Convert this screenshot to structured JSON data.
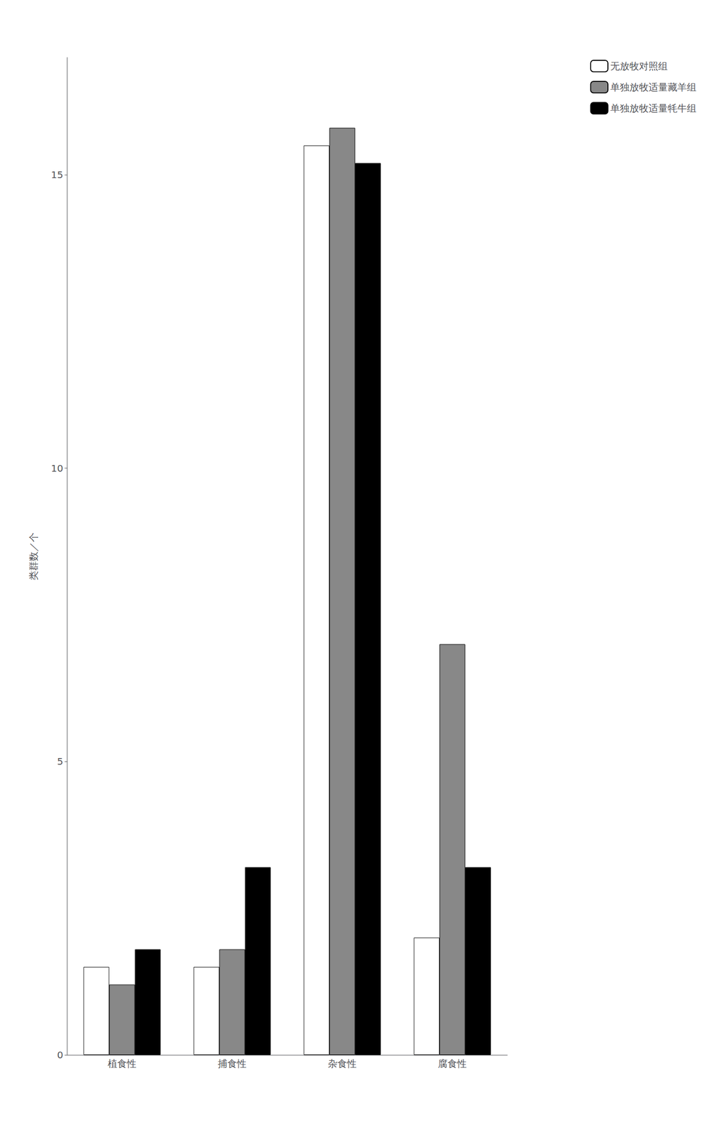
{
  "chart_data": {
    "type": "bar",
    "categories": [
      "植食性",
      "捕食性",
      "杂食性",
      "腐食性"
    ],
    "series": [
      {
        "name": "无放牧对照组",
        "color": "white",
        "values": [
          1.5,
          1.5,
          15.5,
          2.0
        ]
      },
      {
        "name": "单独放牧适量藏羊组",
        "color": "#888888",
        "values": [
          1.2,
          1.8,
          15.8,
          7.0
        ]
      },
      {
        "name": "单独放牧适量牦牛组",
        "color": "black",
        "values": [
          1.8,
          3.2,
          15.2,
          3.2
        ]
      }
    ],
    "ylabel": "类群数／个",
    "ylim": [
      0,
      17
    ],
    "yticks": [
      0,
      5,
      10,
      15
    ],
    "grid": false,
    "legend": "right"
  }
}
